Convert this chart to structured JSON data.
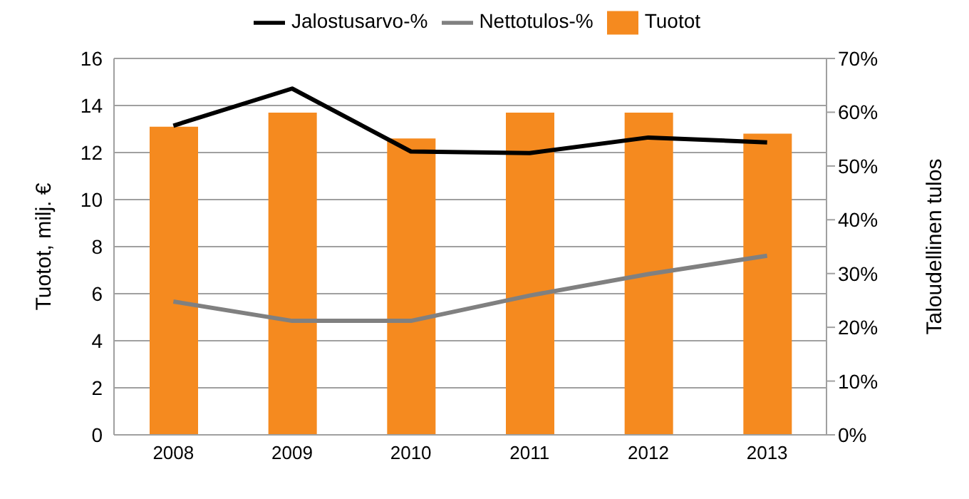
{
  "chart_data": {
    "type": "bar",
    "categories": [
      "2008",
      "2009",
      "2010",
      "2011",
      "2012",
      "2013"
    ],
    "series": [
      {
        "name": "Tuotot",
        "color": "#f58a1f",
        "values": [
          13.1,
          13.7,
          12.6,
          13.7,
          13.7,
          12.8
        ]
      },
      {
        "name": "Jalostusarvo-%",
        "type": "line",
        "axis": "y2",
        "color": "#000000",
        "values": [
          57.5,
          64.4,
          52.7,
          52.4,
          55.3,
          54.4
        ]
      },
      {
        "name": "Nettotulos-%",
        "type": "line",
        "axis": "y2",
        "color": "#808080",
        "values": [
          24.8,
          21.2,
          21.2,
          25.9,
          29.9,
          33.3
        ]
      }
    ],
    "ylabel": "Tuotot, milj. €",
    "y2label": "Taloudellinen tulos",
    "ylim": [
      0,
      16
    ],
    "yticks": [
      0,
      2,
      4,
      6,
      8,
      10,
      12,
      14,
      16
    ],
    "y2lim": [
      0,
      70
    ],
    "y2ticks": [
      {
        "value": 0,
        "label": "0%"
      },
      {
        "value": 10,
        "label": "10%"
      },
      {
        "value": 20,
        "label": "20%"
      },
      {
        "value": 30,
        "label": "30%"
      },
      {
        "value": 40,
        "label": "40%"
      },
      {
        "value": 50,
        "label": "50%"
      },
      {
        "value": 60,
        "label": "60%"
      },
      {
        "value": 70,
        "label": "70%"
      }
    ],
    "grid": "y",
    "legend": "top",
    "marker": "none",
    "line_style": "solid"
  }
}
